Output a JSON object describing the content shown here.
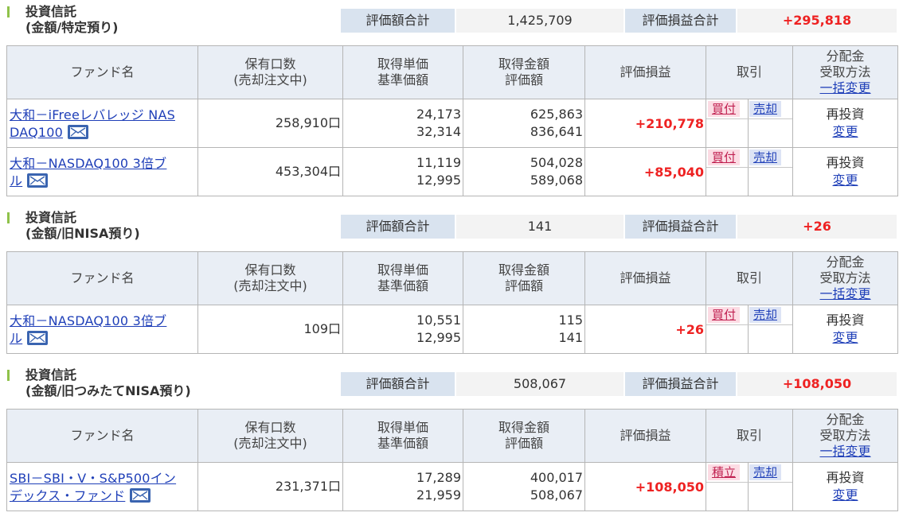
{
  "columns": {
    "fund": "ファンド名",
    "units_l1": "保有口数",
    "units_l2": "(売却注文中)",
    "price_l1": "取得単価",
    "price_l2": "基準価額",
    "amount_l1": "取得金額",
    "amount_l2": "評価額",
    "pl": "評価損益",
    "trade": "取引",
    "div_l1": "分配金",
    "div_l2": "受取方法",
    "div_l3": "一括変更"
  },
  "labels": {
    "eval_total": "評価額合計",
    "pl_total": "評価損益合計",
    "reinvest": "再投資",
    "change": "変更",
    "sell": "売却"
  },
  "sections": [
    {
      "title_l1": "投資信託",
      "title_l2": "(金額/特定預り)",
      "eval_total": "1,425,709",
      "pl_total": "+295,818",
      "rows": [
        {
          "name_l1": "大和－iFreeレバレッジ NAS",
          "name_l2": "DAQ100",
          "units": "258,910口",
          "cost_price": "24,173",
          "base_price": "32,314",
          "cost_amount": "625,863",
          "eval_amount": "836,641",
          "pl": "+210,778",
          "buy_label": "買付"
        },
        {
          "name_l1": "大和－NASDAQ100 3倍ブ",
          "name_l2": "ル",
          "units": "453,304口",
          "cost_price": "11,119",
          "base_price": "12,995",
          "cost_amount": "504,028",
          "eval_amount": "589,068",
          "pl": "+85,040",
          "buy_label": "買付"
        }
      ]
    },
    {
      "title_l1": "投資信託",
      "title_l2": "(金額/旧NISA預り)",
      "eval_total": "141",
      "pl_total": "+26",
      "rows": [
        {
          "name_l1": "大和－NASDAQ100 3倍ブ",
          "name_l2": "ル",
          "units": "109口",
          "cost_price": "10,551",
          "base_price": "12,995",
          "cost_amount": "115",
          "eval_amount": "141",
          "pl": "+26",
          "buy_label": "買付"
        }
      ]
    },
    {
      "title_l1": "投資信託",
      "title_l2": "(金額/旧つみたてNISA預り)",
      "eval_total": "508,067",
      "pl_total": "+108,050",
      "rows": [
        {
          "name_l1": "SBI－SBI・V・S&P500イン",
          "name_l2": "デックス・ファンド",
          "units": "231,371口",
          "cost_price": "17,289",
          "base_price": "21,959",
          "cost_amount": "400,017",
          "eval_amount": "508,067",
          "pl": "+108,050",
          "buy_label": "積立"
        }
      ]
    }
  ]
}
